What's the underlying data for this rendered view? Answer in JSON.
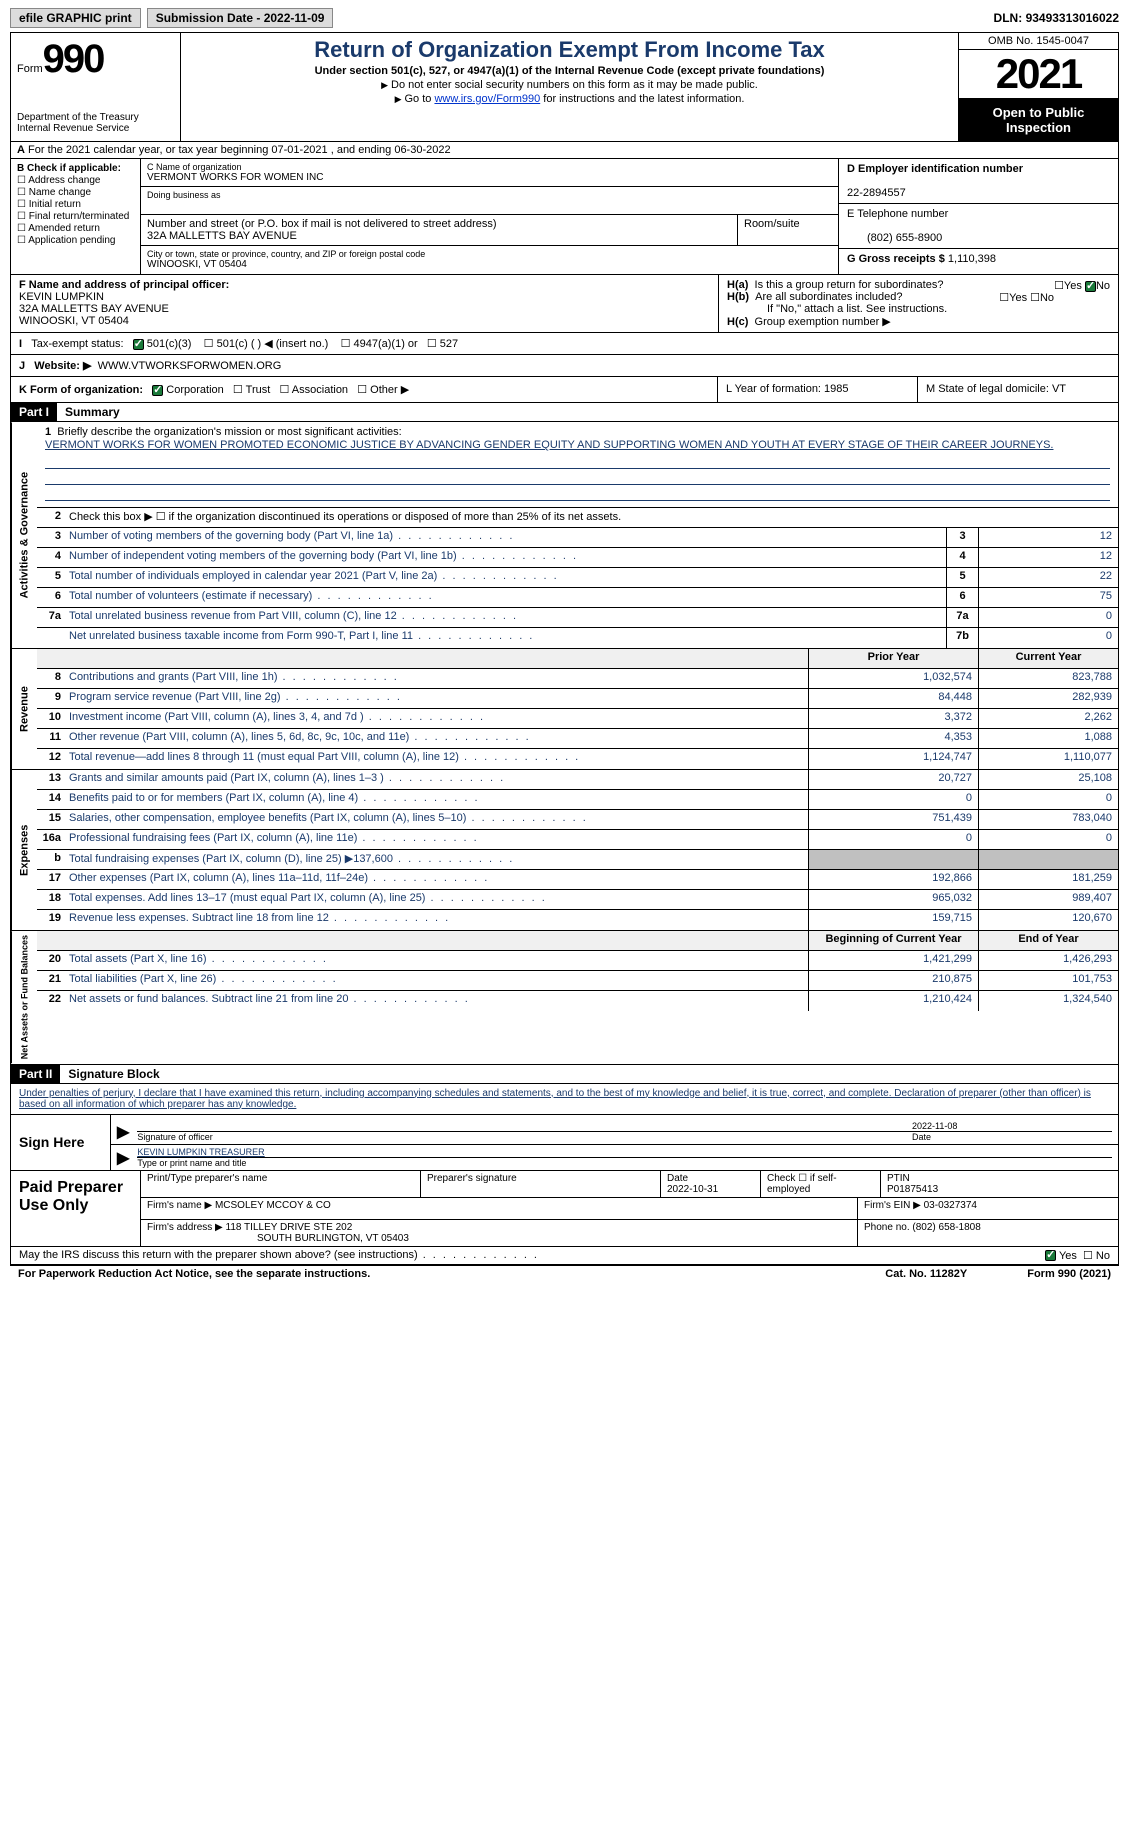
{
  "topbar": {
    "efile": "efile GRAPHIC print",
    "submission": "Submission Date - 2022-11-09",
    "dln_label": "DLN:",
    "dln": "93493313016022"
  },
  "header": {
    "form_prefix": "Form",
    "form_num": "990",
    "dept": "Department of the Treasury Internal Revenue Service",
    "title": "Return of Organization Exempt From Income Tax",
    "subtitle": "Under section 501(c), 527, or 4947(a)(1) of the Internal Revenue Code (except private foundations)",
    "note1": "Do not enter social security numbers on this form as it may be made public.",
    "note2_pre": "Go to ",
    "note2_link": "www.irs.gov/Form990",
    "note2_post": " for instructions and the latest information.",
    "omb": "OMB No. 1545-0047",
    "year": "2021",
    "inspection": "Open to Public Inspection"
  },
  "row_a": "For the 2021 calendar year, or tax year beginning 07-01-2021    , and ending 06-30-2022",
  "col_b": {
    "label": "B Check if applicable:",
    "items": [
      "Address change",
      "Name change",
      "Initial return",
      "Final return/terminated",
      "Amended return",
      "Application pending"
    ]
  },
  "col_c": {
    "name_lbl": "C Name of organization",
    "name": "VERMONT WORKS FOR WOMEN INC",
    "dba_lbl": "Doing business as",
    "street_lbl": "Number and street (or P.O. box if mail is not delivered to street address)",
    "street": "32A MALLETTS BAY AVENUE",
    "room_lbl": "Room/suite",
    "city_lbl": "City or town, state or province, country, and ZIP or foreign postal code",
    "city": "WINOOSKI, VT  05404"
  },
  "col_d": {
    "ein_lbl": "D Employer identification number",
    "ein": "22-2894557",
    "phone_lbl": "E Telephone number",
    "phone": "(802) 655-8900",
    "gross_lbl": "G Gross receipts $",
    "gross": "1,110,398"
  },
  "row_f": {
    "label": "F  Name and address of principal officer:",
    "name": "KEVIN LUMPKIN",
    "addr1": "32A MALLETTS BAY AVENUE",
    "addr2": "WINOOSKI, VT  05404"
  },
  "row_h": {
    "ha": "Is this a group return for subordinates?",
    "hb": "Are all subordinates included?",
    "hb_note": "If \"No,\" attach a list. See instructions.",
    "hc": "Group exemption number"
  },
  "row_i": {
    "label": "Tax-exempt status:",
    "opts": [
      "501(c)(3)",
      "501(c) (  ) ◀ (insert no.)",
      "4947(a)(1) or",
      "527"
    ]
  },
  "row_j": {
    "label": "Website: ▶",
    "val": "WWW.VTWORKSFORWOMEN.ORG",
    "hc_label": "H(c)",
    "hc_txt": "Group exemption number ▶"
  },
  "row_k": {
    "k": "K Form of organization:",
    "opts": [
      "Corporation",
      "Trust",
      "Association",
      "Other ▶"
    ],
    "l": "L Year of formation: 1985",
    "m": "M State of legal domicile: VT"
  },
  "part1": {
    "hdr": "Part I",
    "title": "Summary",
    "l1_lbl": "Briefly describe the organization's mission or most significant activities:",
    "l1_txt": "VERMONT WORKS FOR WOMEN PROMOTED ECONOMIC JUSTICE BY ADVANCING GENDER EQUITY AND SUPPORTING WOMEN AND YOUTH AT EVERY STAGE OF THEIR CAREER JOURNEYS.",
    "l2": "Check this box ▶ ☐  if the organization discontinued its operations or disposed of more than 25% of its net assets.",
    "lines_gov": [
      {
        "n": "3",
        "t": "Number of voting members of the governing body (Part VI, line 1a)",
        "b": "3",
        "v": "12"
      },
      {
        "n": "4",
        "t": "Number of independent voting members of the governing body (Part VI, line 1b)",
        "b": "4",
        "v": "12"
      },
      {
        "n": "5",
        "t": "Total number of individuals employed in calendar year 2021 (Part V, line 2a)",
        "b": "5",
        "v": "22"
      },
      {
        "n": "6",
        "t": "Total number of volunteers (estimate if necessary)",
        "b": "6",
        "v": "75"
      },
      {
        "n": "7a",
        "t": "Total unrelated business revenue from Part VIII, column (C), line 12",
        "b": "7a",
        "v": "0"
      },
      {
        "n": "",
        "t": "Net unrelated business taxable income from Form 990-T, Part I, line 11",
        "b": "7b",
        "v": "0"
      }
    ],
    "hdr_prior": "Prior Year",
    "hdr_current": "Current Year",
    "lines_rev": [
      {
        "n": "8",
        "t": "Contributions and grants (Part VIII, line 1h)",
        "p": "1,032,574",
        "c": "823,788"
      },
      {
        "n": "9",
        "t": "Program service revenue (Part VIII, line 2g)",
        "p": "84,448",
        "c": "282,939"
      },
      {
        "n": "10",
        "t": "Investment income (Part VIII, column (A), lines 3, 4, and 7d )",
        "p": "3,372",
        "c": "2,262"
      },
      {
        "n": "11",
        "t": "Other revenue (Part VIII, column (A), lines 5, 6d, 8c, 9c, 10c, and 11e)",
        "p": "4,353",
        "c": "1,088"
      },
      {
        "n": "12",
        "t": "Total revenue—add lines 8 through 11 (must equal Part VIII, column (A), line 12)",
        "p": "1,124,747",
        "c": "1,110,077"
      }
    ],
    "lines_exp": [
      {
        "n": "13",
        "t": "Grants and similar amounts paid (Part IX, column (A), lines 1–3 )",
        "p": "20,727",
        "c": "25,108"
      },
      {
        "n": "14",
        "t": "Benefits paid to or for members (Part IX, column (A), line 4)",
        "p": "0",
        "c": "0"
      },
      {
        "n": "15",
        "t": "Salaries, other compensation, employee benefits (Part IX, column (A), lines 5–10)",
        "p": "751,439",
        "c": "783,040"
      },
      {
        "n": "16a",
        "t": "Professional fundraising fees (Part IX, column (A), line 11e)",
        "p": "0",
        "c": "0"
      },
      {
        "n": "b",
        "t": "Total fundraising expenses (Part IX, column (D), line 25) ▶137,600",
        "p": "",
        "c": "",
        "grey": true
      },
      {
        "n": "17",
        "t": "Other expenses (Part IX, column (A), lines 11a–11d, 11f–24e)",
        "p": "192,866",
        "c": "181,259"
      },
      {
        "n": "18",
        "t": "Total expenses. Add lines 13–17 (must equal Part IX, column (A), line 25)",
        "p": "965,032",
        "c": "989,407"
      },
      {
        "n": "19",
        "t": "Revenue less expenses. Subtract line 18 from line 12",
        "p": "159,715",
        "c": "120,670"
      }
    ],
    "hdr_boy": "Beginning of Current Year",
    "hdr_eoy": "End of Year",
    "lines_net": [
      {
        "n": "20",
        "t": "Total assets (Part X, line 16)",
        "p": "1,421,299",
        "c": "1,426,293"
      },
      {
        "n": "21",
        "t": "Total liabilities (Part X, line 26)",
        "p": "210,875",
        "c": "101,753"
      },
      {
        "n": "22",
        "t": "Net assets or fund balances. Subtract line 21 from line 20",
        "p": "1,210,424",
        "c": "1,324,540"
      }
    ],
    "side_gov": "Activities & Governance",
    "side_rev": "Revenue",
    "side_exp": "Expenses",
    "side_net": "Net Assets or Fund Balances"
  },
  "part2": {
    "hdr": "Part II",
    "title": "Signature Block",
    "decl": "Under penalties of perjury, I declare that I have examined this return, including accompanying schedules and statements, and to the best of my knowledge and belief, it is true, correct, and complete. Declaration of preparer (other than officer) is based on all information of which preparer has any knowledge.",
    "sign_here": "Sign Here",
    "sig_officer": "Signature of officer",
    "sig_date": "2022-11-08",
    "date_lbl": "Date",
    "name_title": "KEVIN LUMPKIN  TREASURER",
    "name_title_lbl": "Type or print name and title",
    "paid": "Paid Preparer Use Only",
    "prep_name_lbl": "Print/Type preparer's name",
    "prep_sig_lbl": "Preparer's signature",
    "prep_date_lbl": "Date",
    "prep_date": "2022-10-31",
    "prep_check": "Check ☐ if self-employed",
    "ptin_lbl": "PTIN",
    "ptin": "P01875413",
    "firm_name_lbl": "Firm's name    ▶",
    "firm_name": "MCSOLEY MCCOY & CO",
    "firm_ein_lbl": "Firm's EIN ▶",
    "firm_ein": "03-0327374",
    "firm_addr_lbl": "Firm's address ▶",
    "firm_addr1": "118 TILLEY DRIVE STE 202",
    "firm_addr2": "SOUTH BURLINGTON, VT  05403",
    "firm_phone_lbl": "Phone no.",
    "firm_phone": "(802) 658-1808"
  },
  "footer": {
    "discuss": "May the IRS discuss this return with the preparer shown above? (see instructions)",
    "pra": "For Paperwork Reduction Act Notice, see the separate instructions.",
    "cat": "Cat. No. 11282Y",
    "form": "Form 990 (2021)"
  },
  "colors": {
    "link_blue": "#1a3a6b",
    "check_green": "#1a7a3a"
  }
}
